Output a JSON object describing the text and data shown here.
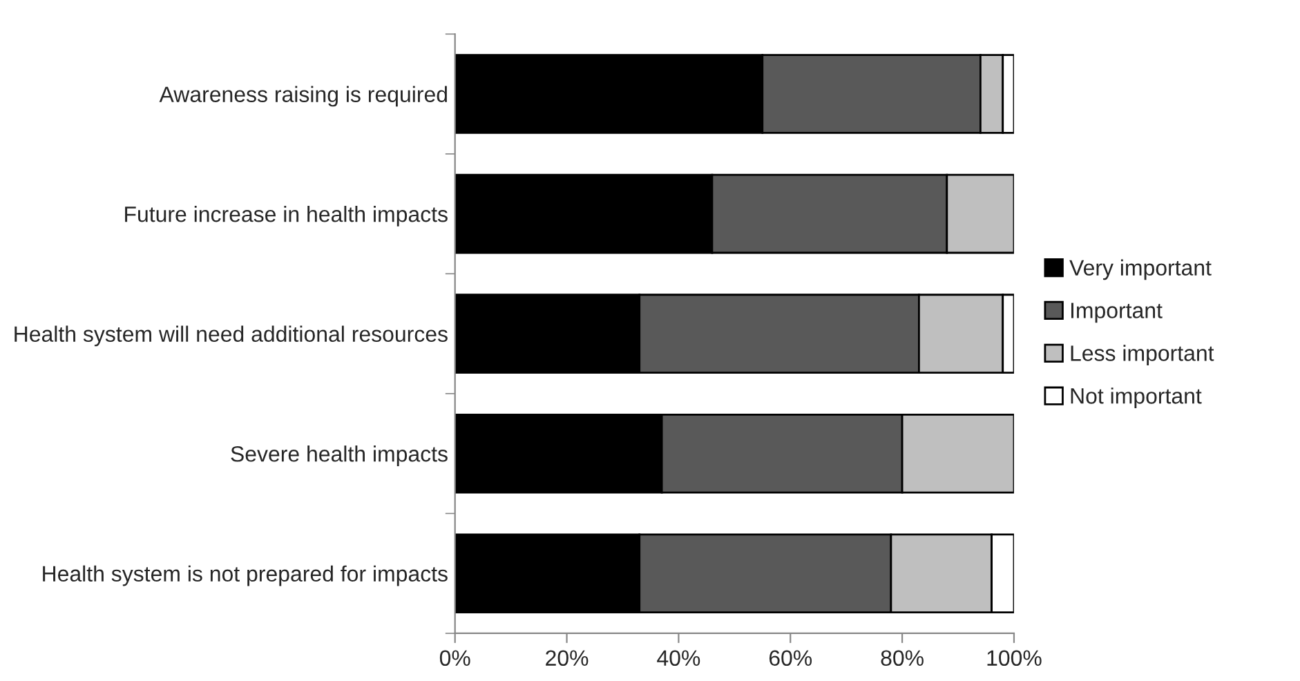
{
  "chart_data": {
    "type": "bar",
    "orientation": "horizontal",
    "stacked": true,
    "categories": [
      "Awareness raising is required",
      "Future increase in health impacts",
      "Health system will need additional resources",
      "Severe health impacts",
      "Health system is not prepared for impacts"
    ],
    "series": [
      {
        "name": "Very important",
        "color": "#000000",
        "values": [
          55,
          46,
          33,
          37,
          33
        ]
      },
      {
        "name": "Important",
        "color": "#595959",
        "values": [
          39,
          42,
          50,
          43,
          45
        ]
      },
      {
        "name": "Less important",
        "color": "#bfbfbf",
        "values": [
          4,
          12,
          15,
          20,
          18
        ]
      },
      {
        "name": "Not important",
        "color": "#ffffff",
        "values": [
          2,
          0,
          2,
          0,
          4
        ]
      }
    ],
    "xlim": [
      0,
      100
    ],
    "xticks": [
      {
        "value": 0,
        "label": "0%"
      },
      {
        "value": 20,
        "label": "20%"
      },
      {
        "value": 40,
        "label": "40%"
      },
      {
        "value": 60,
        "label": "60%"
      },
      {
        "value": 80,
        "label": "80%"
      },
      {
        "value": 100,
        "label": "100%"
      }
    ],
    "legend": "right",
    "grid": false
  }
}
